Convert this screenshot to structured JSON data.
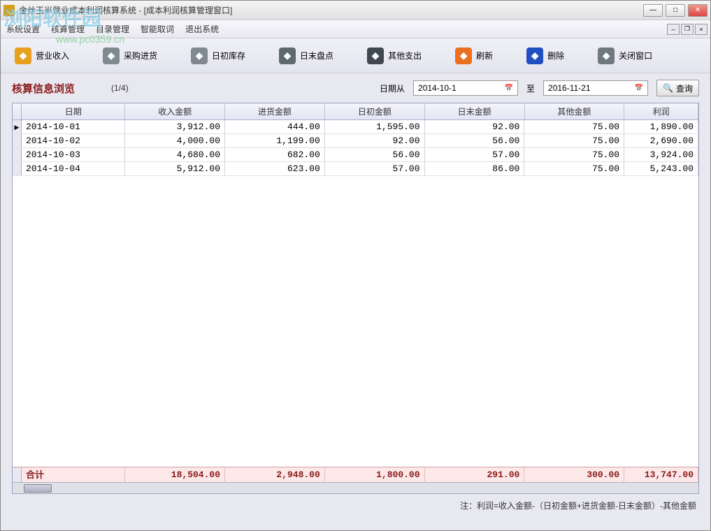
{
  "window": {
    "title": "金丝玉米营业成本利润核算系统 - [成本利润核算管理窗口]"
  },
  "watermark": {
    "text": "浏阳软件园",
    "url": "www.pc0359.cn"
  },
  "menubar": {
    "items": [
      "系统设置",
      "核算管理",
      "目录管理",
      "智能取词",
      "退出系统"
    ]
  },
  "toolbar": {
    "items": [
      {
        "label": "营业收入",
        "color": "#e8a020"
      },
      {
        "label": "采购进货",
        "color": "#808890"
      },
      {
        "label": "日初库存",
        "color": "#808890"
      },
      {
        "label": "日末盘点",
        "color": "#606870"
      },
      {
        "label": "其他支出",
        "color": "#404850"
      },
      {
        "label": "刷新",
        "color": "#e87020"
      },
      {
        "label": "删除",
        "color": "#2050c0"
      },
      {
        "label": "关闭窗口",
        "color": "#707880"
      }
    ]
  },
  "filter": {
    "browse_label": "核算信息浏览",
    "pager": "(1/4)",
    "date_from_label": "日期从",
    "date_from": "2014-10-1",
    "date_to_label": "至",
    "date_to": "2016-11-21",
    "query_label": "查询"
  },
  "grid": {
    "columns": [
      "日期",
      "收入金额",
      "进货金额",
      "日初金额",
      "日末金额",
      "其他金额",
      "利润"
    ],
    "rows": [
      {
        "date": "2014-10-01",
        "income": "3,912.00",
        "purchase": "444.00",
        "begin": "1,595.00",
        "end": "92.00",
        "other": "75.00",
        "profit": "1,890.00"
      },
      {
        "date": "2014-10-02",
        "income": "4,000.00",
        "purchase": "1,199.00",
        "begin": "92.00",
        "end": "56.00",
        "other": "75.00",
        "profit": "2,690.00"
      },
      {
        "date": "2014-10-03",
        "income": "4,680.00",
        "purchase": "682.00",
        "begin": "56.00",
        "end": "57.00",
        "other": "75.00",
        "profit": "3,924.00"
      },
      {
        "date": "2014-10-04",
        "income": "5,912.00",
        "purchase": "623.00",
        "begin": "57.00",
        "end": "86.00",
        "other": "75.00",
        "profit": "5,243.00"
      }
    ],
    "footer": {
      "label": "合计",
      "income": "18,504.00",
      "purchase": "2,948.00",
      "begin": "1,800.00",
      "end": "291.00",
      "other": "300.00",
      "profit": "13,747.00"
    }
  },
  "footnote": "注：利润=收入金额-（日初金额+进货金额-日末金额）-其他金额"
}
